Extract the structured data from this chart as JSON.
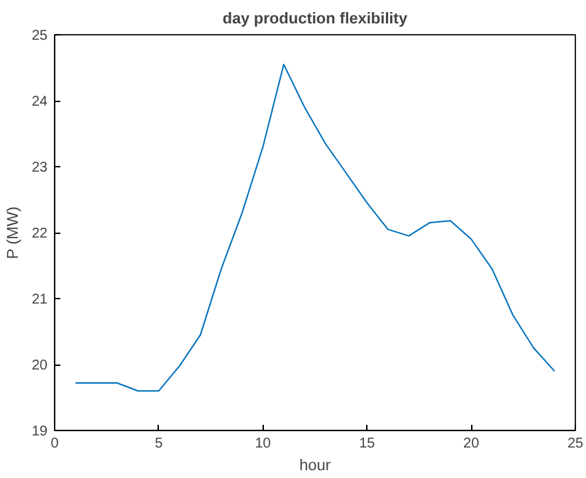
{
  "chart_data": {
    "type": "line",
    "title": "day production flexibility",
    "xlabel": "hour",
    "ylabel": "P (MW)",
    "x": [
      1,
      2,
      3,
      4,
      5,
      6,
      7,
      8,
      9,
      10,
      11,
      12,
      13,
      14,
      15,
      16,
      17,
      18,
      19,
      20,
      21,
      22,
      23,
      24
    ],
    "series": [
      {
        "color": "#0072bd",
        "values": [
          19.72,
          19.72,
          19.72,
          19.6,
          19.6,
          19.98,
          20.45,
          21.45,
          22.3,
          23.3,
          24.55,
          23.9,
          23.35,
          22.9,
          22.45,
          22.05,
          21.95,
          22.15,
          22.18,
          21.9,
          21.45,
          20.75,
          20.25,
          19.9
        ]
      }
    ],
    "xlim": [
      0,
      25
    ],
    "ylim": [
      19,
      25
    ],
    "xticks": [
      0,
      5,
      10,
      15,
      20,
      25
    ],
    "yticks": [
      19,
      20,
      21,
      22,
      23,
      24,
      25
    ],
    "grid": false,
    "line_style": "solid",
    "marker": "none"
  }
}
